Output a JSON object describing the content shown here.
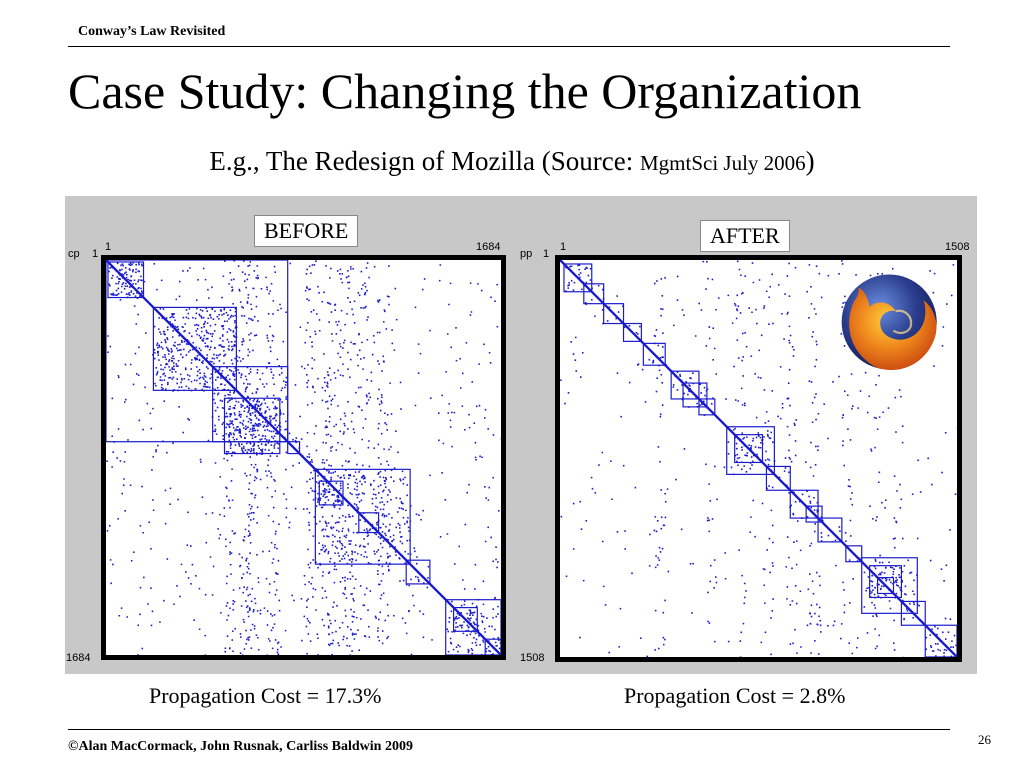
{
  "header": {
    "label": "Conway’s Law Revisited"
  },
  "slide": {
    "title": "Case Study: Changing the Organization",
    "subtitle_main": "E.g., The Redesign of Mozilla (Source: ",
    "subtitle_source": "MgmtSci July 2006",
    "subtitle_close": ")"
  },
  "before": {
    "label": "BEFORE",
    "axis_corner_left": "cp",
    "axis_top_start": "1",
    "axis_top_end": "1684",
    "axis_left_start": "1",
    "axis_left_end": "1684",
    "size": 1684,
    "caption": "Propagation Cost = 17.3%"
  },
  "after": {
    "label": "AFTER",
    "axis_corner_left": "pp",
    "axis_top_start": "1",
    "axis_top_end": "1508",
    "axis_left_start": "1",
    "axis_left_end": "1508",
    "size": 1508,
    "caption": "Propagation Cost = 2.8%",
    "logo_icon": "firefox-logo-icon"
  },
  "colors": {
    "matrix_blue": "#1a1acc",
    "figure_bg": "#c8c8c8",
    "logo_orange": "#e8641a",
    "logo_blue": "#2a3c8c"
  },
  "footer": {
    "copyright": "©Alan MacCormack, John Rusnak, Carliss Baldwin 2009",
    "page_number": "26"
  }
}
